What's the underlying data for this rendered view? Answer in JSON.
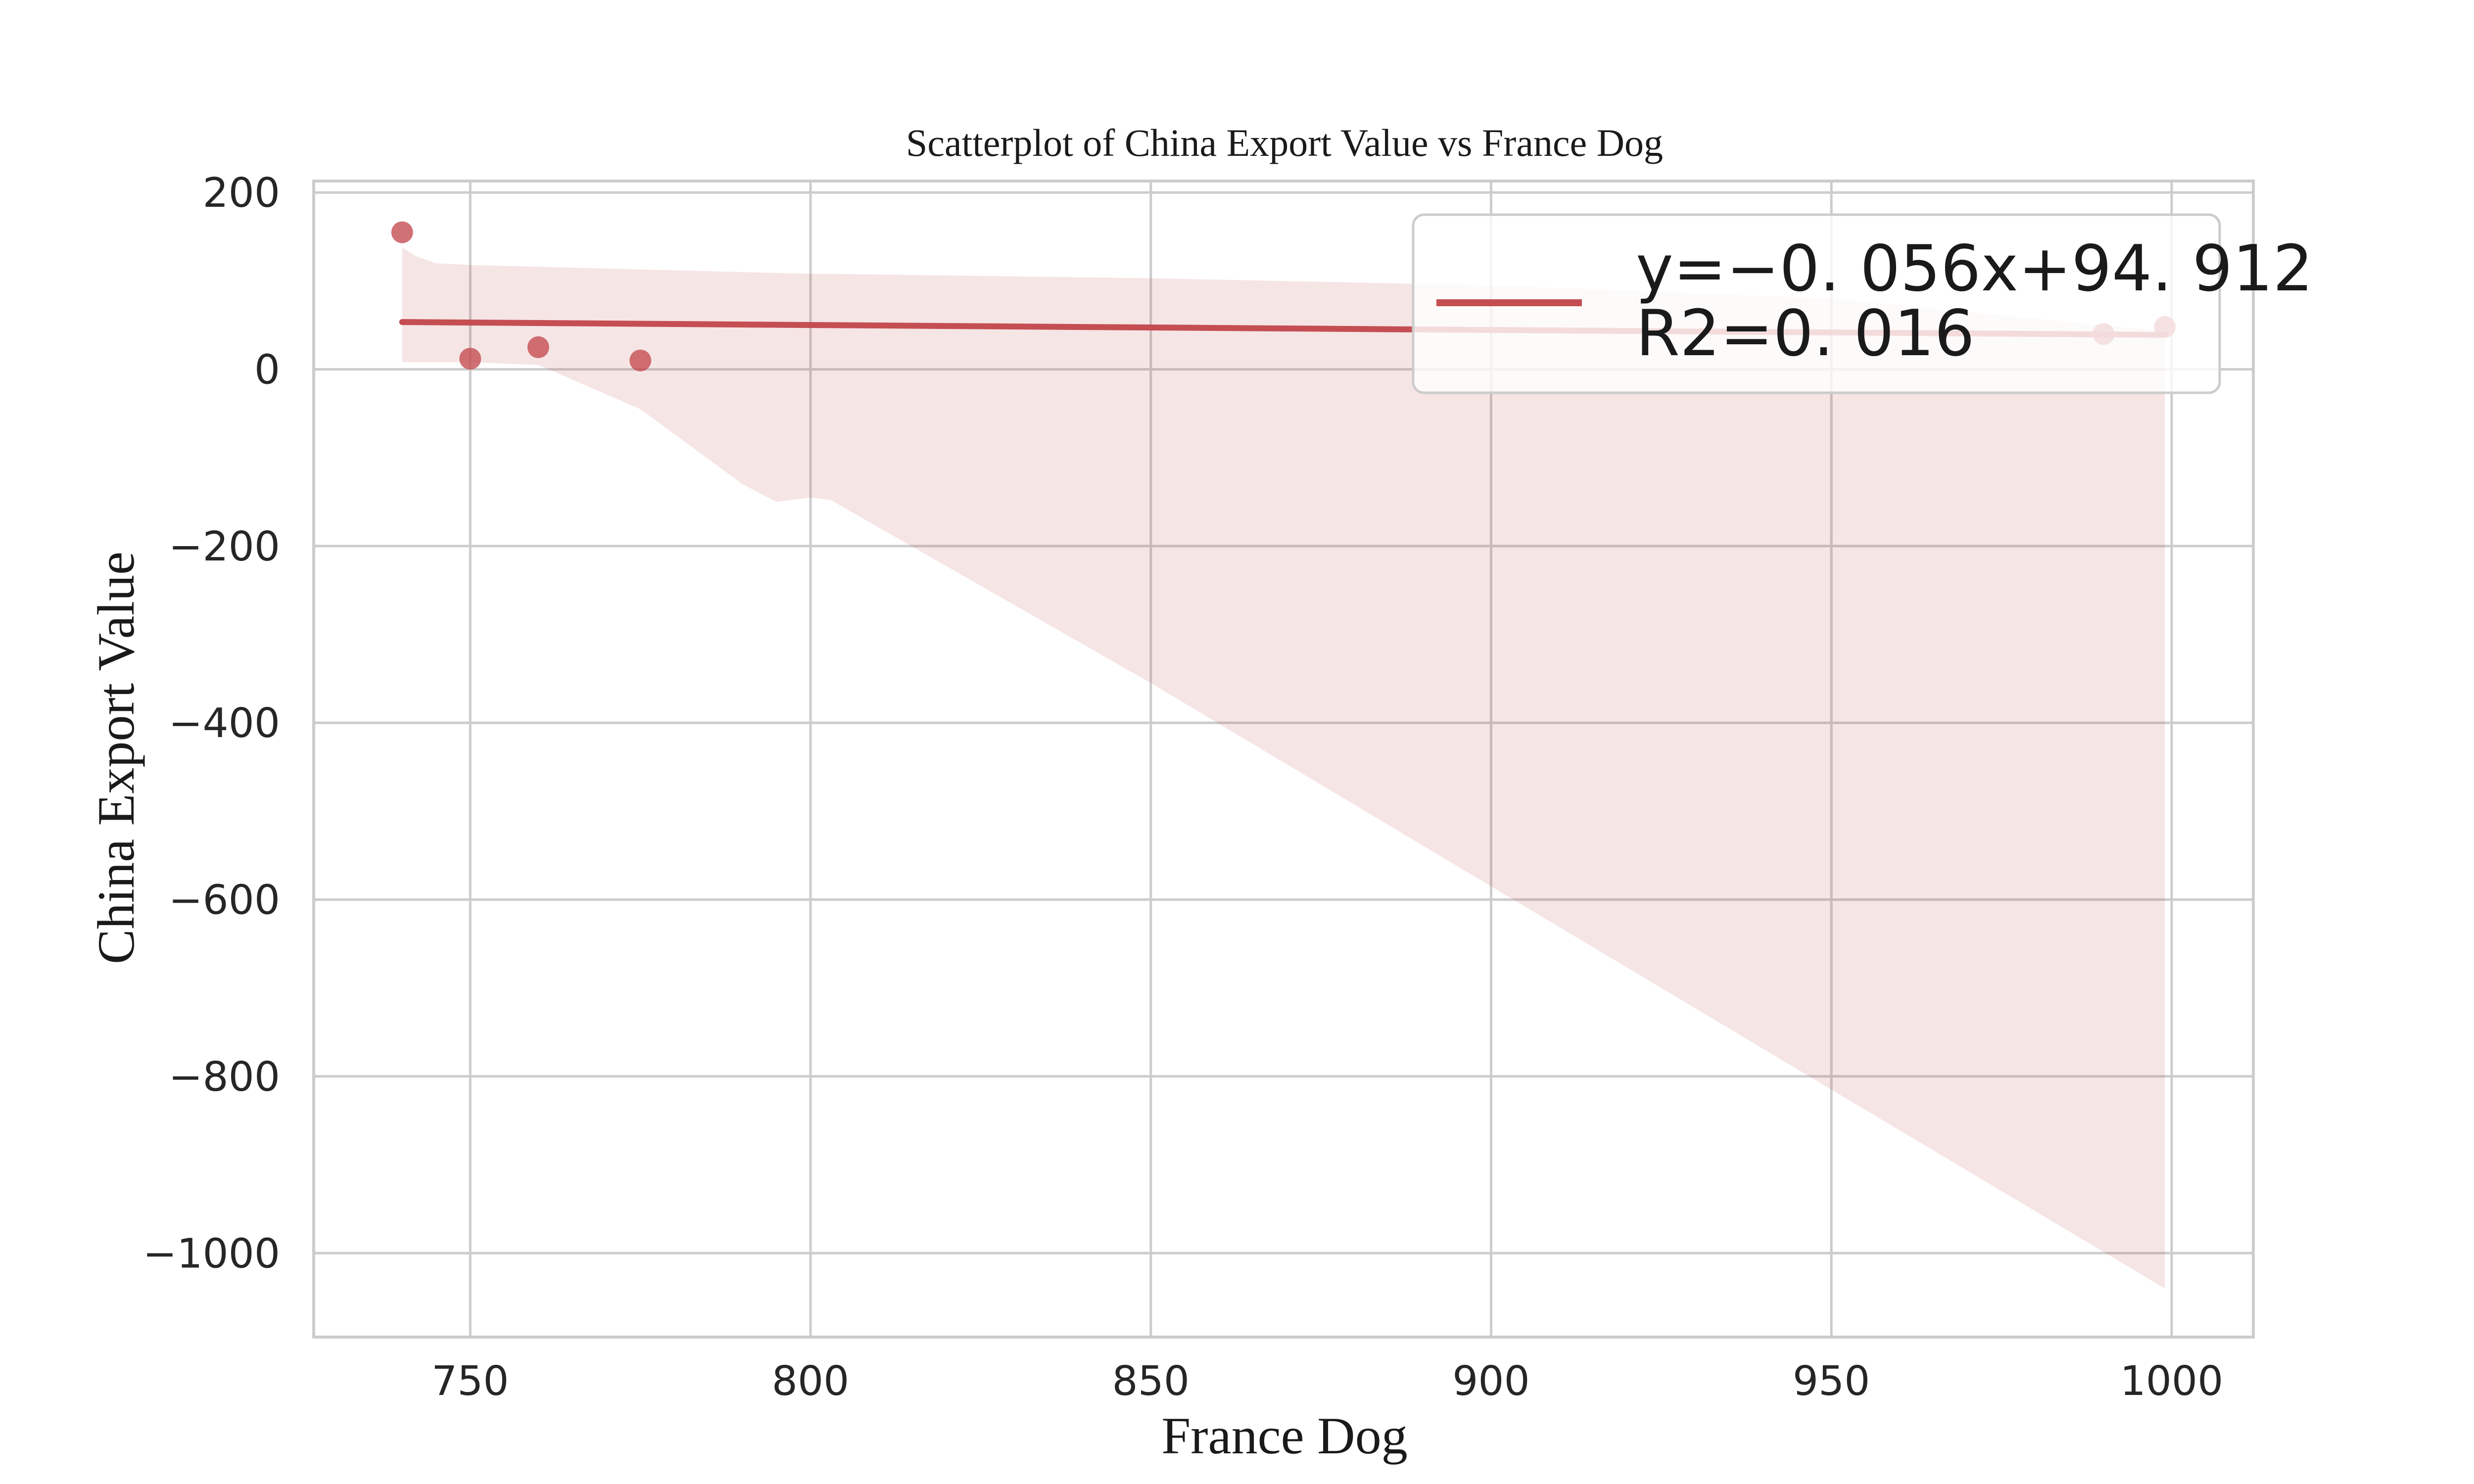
{
  "chart_data": {
    "type": "scatter",
    "title": "Scatterplot of China Export Value vs France Dog",
    "xlabel": "France Dog",
    "ylabel": "China Export Value",
    "xlim": [
      727,
      1012
    ],
    "ylim": [
      -1095,
      213
    ],
    "x_ticks": [
      750,
      800,
      850,
      900,
      950,
      1000
    ],
    "y_ticks": [
      200,
      0,
      -200,
      -400,
      -600,
      -800,
      -1000
    ],
    "y_tick_labels": [
      "200",
      "0",
      "−200",
      "−400",
      "−600",
      "−800",
      "−1000"
    ],
    "grid": true,
    "points": [
      {
        "x": 740,
        "y": 155
      },
      {
        "x": 750,
        "y": 12
      },
      {
        "x": 760,
        "y": 25
      },
      {
        "x": 775,
        "y": 10
      },
      {
        "x": 990,
        "y": 40
      },
      {
        "x": 999,
        "y": 48
      }
    ],
    "regression": {
      "x_range": [
        740,
        999
      ],
      "slope": -0.056,
      "intercept": 94.912,
      "confidence_band": {
        "x": [
          740,
          742,
          745,
          750,
          760,
          775,
          790,
          795,
          800,
          803,
          850,
          900,
          950,
          999
        ],
        "upper": [
          138,
          128,
          120,
          118,
          116,
          113,
          110,
          109,
          108,
          108,
          103,
          95,
          80,
          43
        ],
        "lower": [
          8,
          8,
          8,
          8,
          5,
          -45,
          -130,
          -150,
          -145,
          -148,
          -355,
          -585,
          -815,
          -1040
        ]
      }
    },
    "legend": {
      "placement": "top-right",
      "line1": "y=−0. 056x+94. 912",
      "line2": "R2=0. 016"
    },
    "colors": {
      "series": "#c44e52",
      "band": "#c44e52",
      "grid": "#cccccc",
      "axes": "#cccccc"
    }
  }
}
